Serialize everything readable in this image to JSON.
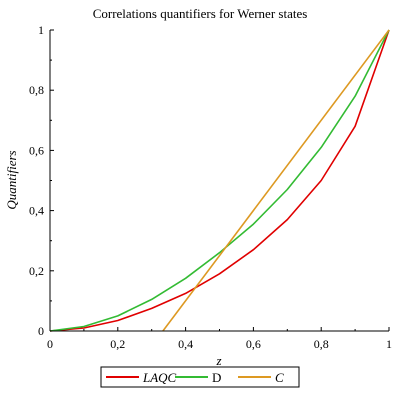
{
  "chart_data": {
    "type": "line",
    "title": "Correlations quantifiers for Werner states",
    "xlabel": "z",
    "ylabel": "Quantifiers",
    "xlim": [
      0,
      1
    ],
    "ylim": [
      0,
      1
    ],
    "x_ticks": [
      "0",
      "0,2",
      "0,4",
      "0,6",
      "0,8",
      "1"
    ],
    "y_ticks": [
      "0",
      "0,2",
      "0,4",
      "0,6",
      "0,8",
      "1"
    ],
    "x_tick_values": [
      0,
      0.2,
      0.4,
      0.6,
      0.8,
      1
    ],
    "y_tick_values": [
      0,
      0.2,
      0.4,
      0.6,
      0.8,
      1
    ],
    "grid": false,
    "legend_position": "bottom-center",
    "series": [
      {
        "name": "LAQC",
        "color": "#e00000",
        "italic": true,
        "x": [
          0,
          0.1,
          0.2,
          0.3,
          0.4,
          0.5,
          0.6,
          0.7,
          0.8,
          0.9,
          1.0
        ],
        "values": [
          0,
          0.01,
          0.035,
          0.075,
          0.125,
          0.19,
          0.27,
          0.37,
          0.5,
          0.68,
          1.0
        ]
      },
      {
        "name": "D",
        "color": "#33bb33",
        "italic": false,
        "x": [
          0,
          0.1,
          0.2,
          0.3,
          0.4,
          0.5,
          0.6,
          0.7,
          0.8,
          0.9,
          1.0
        ],
        "values": [
          0,
          0.015,
          0.05,
          0.105,
          0.175,
          0.26,
          0.355,
          0.47,
          0.61,
          0.78,
          1.0
        ]
      },
      {
        "name": "C",
        "color": "#dd9922",
        "italic": true,
        "x": [
          0.333,
          1.0
        ],
        "values": [
          0,
          1.0
        ]
      }
    ]
  }
}
